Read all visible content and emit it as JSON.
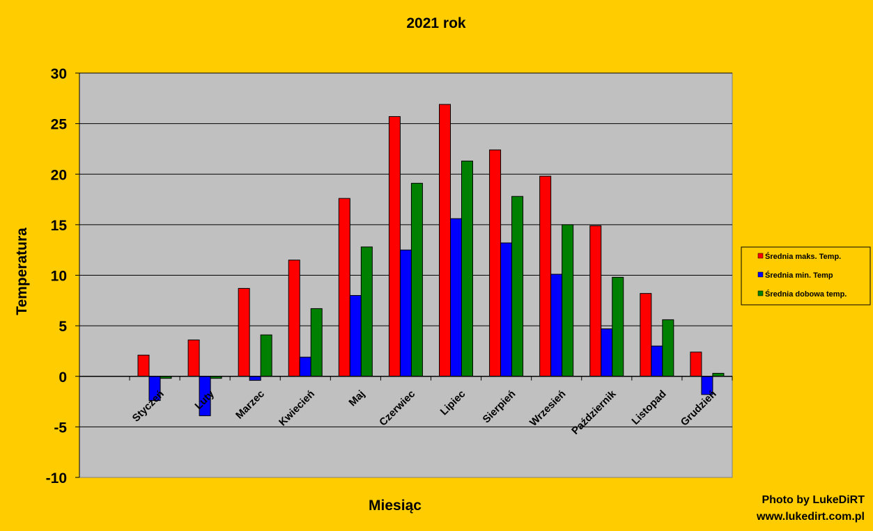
{
  "chart_data": {
    "type": "bar",
    "title": "2021 rok",
    "xlabel": "Miesiąc",
    "ylabel": "Temperatura",
    "ylim": [
      -10,
      30
    ],
    "yticks": [
      30,
      25,
      20,
      15,
      10,
      5,
      0,
      -5,
      -10
    ],
    "grid": true,
    "legend_position": "right",
    "categories": [
      "Styczeń",
      "Luty",
      "Marzec",
      "Kwiecień",
      "Maj",
      "Czerwiec",
      "Lipiec",
      "Sierpień",
      "Wrzesień",
      "Październik",
      "Listopad",
      "Grudzień"
    ],
    "series": [
      {
        "name": "Średnia maks. Temp.",
        "color": "#ff0000",
        "values": [
          2.1,
          3.6,
          8.7,
          11.5,
          17.6,
          25.7,
          26.9,
          22.4,
          19.8,
          14.9,
          8.2,
          2.4
        ]
      },
      {
        "name": "Średnia min. Temp",
        "color": "#0000ff",
        "values": [
          -2.4,
          -3.9,
          -0.4,
          1.9,
          8.0,
          12.5,
          15.6,
          13.2,
          10.1,
          4.7,
          3.0,
          -1.8
        ]
      },
      {
        "name": "Średnia dobowa temp.",
        "color": "#008000",
        "values": [
          -0.2,
          -0.2,
          4.1,
          6.7,
          12.8,
          19.1,
          21.3,
          17.8,
          15.0,
          9.8,
          5.6,
          0.3
        ]
      }
    ],
    "colors": {
      "background": "#ffcc00",
      "plot_area": "#c0c0c0",
      "gridline": "#000000"
    }
  },
  "credit": {
    "line1": "Photo by LukeDiRT",
    "line2": "www.lukedirt.com.pl"
  }
}
